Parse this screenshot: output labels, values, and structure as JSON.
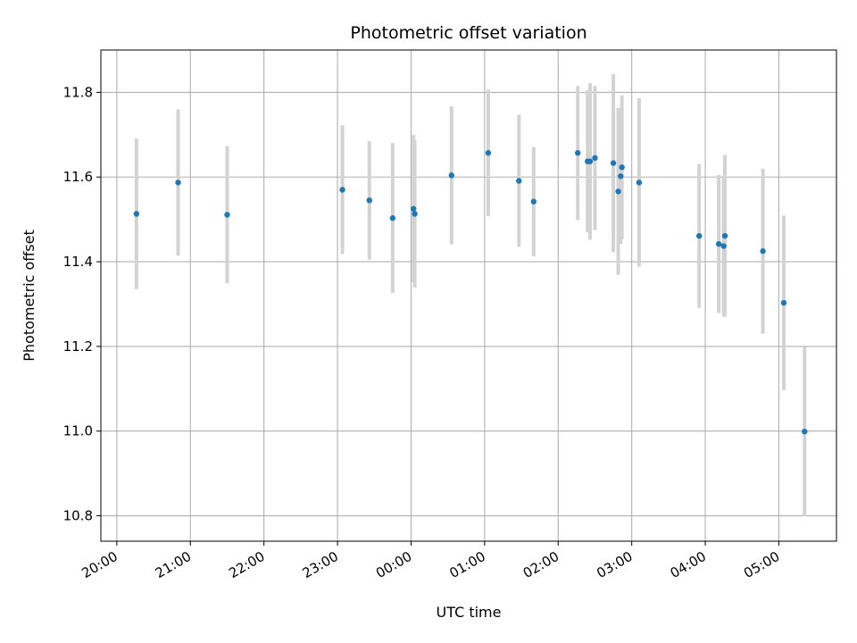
{
  "chart_data": {
    "type": "scatter",
    "title": "Photometric offset variation",
    "xlabel": "UTC time",
    "ylabel": "Photometric offset",
    "grid": true,
    "x_tick_labels": [
      "20:00",
      "21:00",
      "22:00",
      "23:00",
      "00:00",
      "01:00",
      "02:00",
      "03:00",
      "04:00",
      "05:00"
    ],
    "y_tick_labels": [
      "10.8",
      "11.0",
      "11.2",
      "11.4",
      "11.6",
      "11.8"
    ],
    "y_ticks": [
      10.8,
      11.0,
      11.2,
      11.4,
      11.6,
      11.8
    ],
    "xlim": [
      "19:47",
      "05:47"
    ],
    "ylim": [
      10.74,
      11.9
    ],
    "colors": {
      "point": "#1f77b4",
      "errorbar": "#d3d3d3",
      "grid": "#b0b0b0"
    },
    "series": [
      {
        "points": [
          {
            "x": "20:16",
            "y": 11.513,
            "err": 0.178
          },
          {
            "x": "20:50",
            "y": 11.587,
            "err": 0.173
          },
          {
            "x": "21:30",
            "y": 11.511,
            "err": 0.162
          },
          {
            "x": "23:04",
            "y": 11.57,
            "err": 0.152
          },
          {
            "x": "23:26",
            "y": 11.545,
            "err": 0.14
          },
          {
            "x": "23:45",
            "y": 11.503,
            "err": 0.177
          },
          {
            "x": "00:02",
            "y": 11.525,
            "err": 0.174
          },
          {
            "x": "00:03",
            "y": 11.513,
            "err": 0.174
          },
          {
            "x": "00:33",
            "y": 11.604,
            "err": 0.163
          },
          {
            "x": "01:03",
            "y": 11.657,
            "err": 0.149
          },
          {
            "x": "01:28",
            "y": 11.591,
            "err": 0.156
          },
          {
            "x": "01:40",
            "y": 11.542,
            "err": 0.129
          },
          {
            "x": "02:16",
            "y": 11.657,
            "err": 0.158
          },
          {
            "x": "02:24",
            "y": 11.637,
            "err": 0.168
          },
          {
            "x": "02:26",
            "y": 11.637,
            "err": 0.185
          },
          {
            "x": "02:30",
            "y": 11.645,
            "err": 0.17
          },
          {
            "x": "02:45",
            "y": 11.633,
            "err": 0.21
          },
          {
            "x": "02:49",
            "y": 11.566,
            "err": 0.197
          },
          {
            "x": "02:51",
            "y": 11.602,
            "err": 0.16
          },
          {
            "x": "02:52",
            "y": 11.623,
            "err": 0.17
          },
          {
            "x": "03:06",
            "y": 11.587,
            "err": 0.199
          },
          {
            "x": "03:55",
            "y": 11.461,
            "err": 0.17
          },
          {
            "x": "04:11",
            "y": 11.442,
            "err": 0.163
          },
          {
            "x": "04:15",
            "y": 11.437,
            "err": 0.166
          },
          {
            "x": "04:16",
            "y": 11.461,
            "err": 0.191
          },
          {
            "x": "04:47",
            "y": 11.425,
            "err": 0.195
          },
          {
            "x": "05:04",
            "y": 11.303,
            "err": 0.206
          },
          {
            "x": "05:21",
            "y": 10.999,
            "err": 0.2
          }
        ]
      }
    ]
  }
}
